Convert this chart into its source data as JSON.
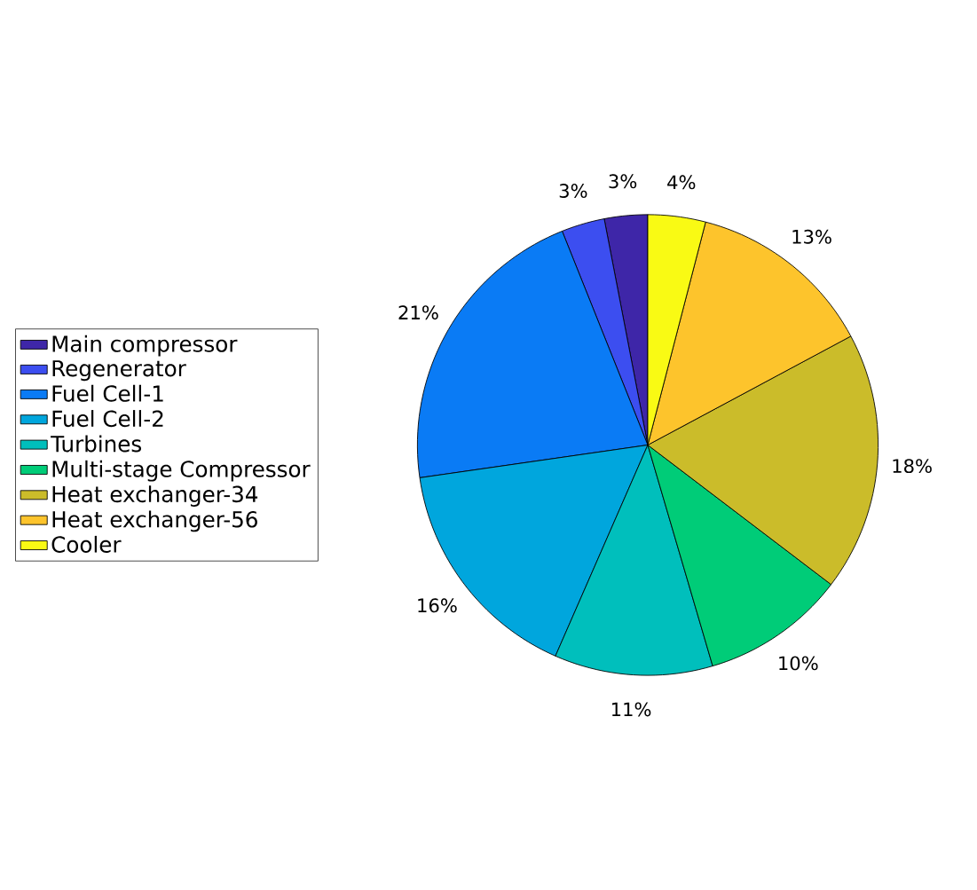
{
  "chart_data": {
    "type": "pie",
    "categories": [
      "Main compressor",
      "Regenerator",
      "Fuel Cell-1",
      "Fuel Cell-2",
      "Turbines",
      "Multi-stage Compressor",
      "Heat exchanger-34",
      "Heat exchanger-56",
      "Cooler"
    ],
    "values": [
      3,
      3,
      21,
      16,
      11,
      10,
      18,
      13,
      4
    ],
    "value_labels": [
      "3%",
      "3%",
      "21%",
      "16%",
      "11%",
      "10%",
      "18%",
      "13%",
      "4%"
    ],
    "colors": [
      "#3e26a8",
      "#3c4ef0",
      "#0a7bf5",
      "#00a6dd",
      "#00bfbc",
      "#00cc78",
      "#cbbc2a",
      "#fdc42c",
      "#f9fa14"
    ],
    "legend": "left"
  }
}
